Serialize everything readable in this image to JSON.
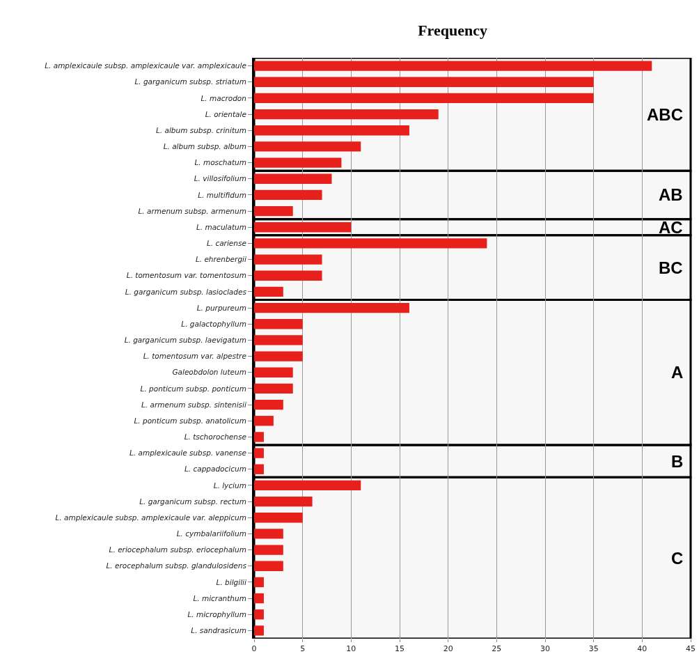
{
  "chart_data": {
    "type": "bar",
    "orientation": "horizontal",
    "title": "Frequency",
    "categories": [
      "L. amplexicaule subsp. amplexicaule var. amplexicaule",
      "L. garganicum subsp. striatum",
      "L. macrodon",
      "L. orientale",
      "L. album subsp. crinitum",
      "L. album subsp. album",
      "L. moschatum",
      "L. villosifolium",
      "L. multifidum",
      "L. armenum subsp. armenum",
      "L. maculatum",
      "L. cariense",
      "L. ehrenbergii",
      "L. tomentosum var. tomentosum",
      "L. garganicum subsp. lasioclades",
      "L. purpureum",
      "L. galactophyllum",
      "L. garganicum subsp. laevigatum",
      "L. tomentosum var. alpestre",
      "Galeobdolon luteum",
      "L. ponticum subsp. ponticum",
      "L. armenum subsp. sintenisii",
      "L. ponticum subsp. anatolicum",
      "L. tschorochense",
      "L. amplexicaule subsp. vanense",
      "L. cappadocicum",
      "L. lycium",
      "L. garganicum subsp. rectum",
      "L. amplexicaule subsp. amplexicaule var. aleppicum",
      "L. cymbalariifolium",
      "L. eriocephalum subsp. eriocephalum",
      "L. erocephalum subsp. glandulosidens",
      "L. bilgilii",
      "L. micranthum",
      "L. microphyllum",
      "L. sandrasicum"
    ],
    "values": [
      41,
      35,
      35,
      19,
      16,
      11,
      9,
      8,
      7,
      4,
      10,
      24,
      7,
      7,
      3,
      16,
      5,
      5,
      5,
      4,
      4,
      3,
      2,
      1,
      1,
      1,
      11,
      6,
      5,
      3,
      3,
      3,
      1,
      1,
      1,
      1
    ],
    "color": "#e8201c",
    "xlim": [
      0,
      45
    ],
    "xticks": [
      0,
      5,
      10,
      15,
      20,
      25,
      30,
      35,
      40,
      45
    ],
    "grid": "x",
    "bands": [
      {
        "axis": "y",
        "from": "L. amplexicaule subsp. amplexicaule var. amplexicaule",
        "to": "L. moschatum",
        "label": "ABC",
        "color": "#000000"
      },
      {
        "axis": "y",
        "from": "L. villosifolium",
        "to": "L. armenum subsp. armenum",
        "label": "AB",
        "color": "#000000"
      },
      {
        "axis": "y",
        "from": "L. maculatum",
        "to": "L. maculatum",
        "label": "AC",
        "color": "#000000"
      },
      {
        "axis": "y",
        "from": "L. cariense",
        "to": "L. garganicum subsp. lasioclades",
        "label": "BC",
        "color": "#000000"
      },
      {
        "axis": "y",
        "from": "L. purpureum",
        "to": "L. tschorochense",
        "label": "A",
        "color": "#000000"
      },
      {
        "axis": "y",
        "from": "L. amplexicaule subsp. vanense",
        "to": "L. cappadocicum",
        "label": "B",
        "color": "#000000"
      },
      {
        "axis": "y",
        "from": "L. lycium",
        "to": "L. sandrasicum",
        "label": "C",
        "color": "#000000"
      }
    ]
  }
}
